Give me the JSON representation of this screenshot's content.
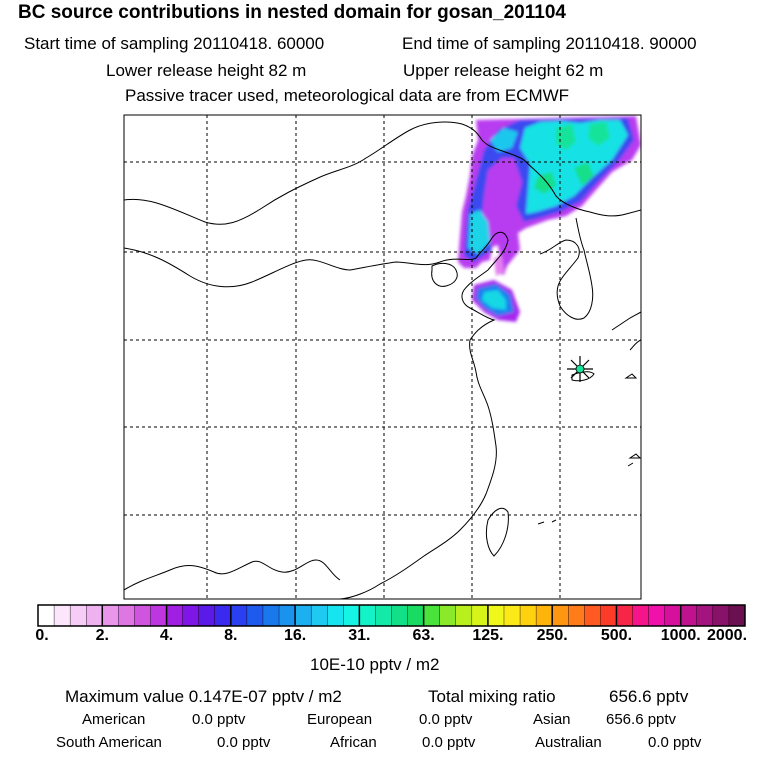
{
  "header": {
    "title": "BC  source contributions in nested domain for gosan_201104",
    "start_label": "Start time of sampling 20110418. 60000",
    "end_label": "End time of sampling 20110418. 90000",
    "lower_label": "Lower release height   82 m",
    "upper_label": "Upper release height   62 m",
    "info": "Passive tracer used, meteorological data are from ECMWF"
  },
  "chart_data": {
    "type": "heatmap",
    "title": "BC  source contributions in nested domain for gosan_201104",
    "colorbar_unit": "10E-10 pptv / m2",
    "colorbar_ticks": [
      "0.",
      "2.",
      "4.",
      "8.",
      "16.",
      "31.",
      "63.",
      "125.",
      "250.",
      "500.",
      "1000.",
      "2000."
    ],
    "colorbar_colors": [
      "#ffffff",
      "#fbe6fb",
      "#f6cdf6",
      "#efb2f0",
      "#e895ea",
      "#de77e2",
      "#cf55df",
      "#bd36e0",
      "#a11ee3",
      "#7f16e8",
      "#5b1ae8",
      "#3a2af0",
      "#2a3ff2",
      "#1f5aee",
      "#1878ec",
      "#1a93ee",
      "#1db0f0",
      "#1fcaf2",
      "#16e5f0",
      "#14f5e6",
      "#14f2c8",
      "#14eaa8",
      "#12e088",
      "#18dc62",
      "#4ae33c",
      "#8ae928",
      "#b8ef1c",
      "#d8f51a",
      "#f0f71a",
      "#fbe91a",
      "#ffd20f",
      "#ffb40a",
      "#ff9612",
      "#ff7c1a",
      "#ff5a22",
      "#fb3c28",
      "#f72648",
      "#f6148a",
      "#f010aa",
      "#d70f9d",
      "#be128e",
      "#a3147e",
      "#881268",
      "#6a0f50"
    ],
    "receptor": "gosan",
    "grid": true
  },
  "stats": {
    "max_label": "Maximum value  0.147E-07 pptv / m2",
    "total_label": "Total mixing ratio",
    "total_value": "656.6 pptv",
    "regions": [
      {
        "name": "American",
        "value": "0.0 pptv"
      },
      {
        "name": "European",
        "value": "0.0 pptv"
      },
      {
        "name": "Asian",
        "value": "656.6 pptv"
      },
      {
        "name": "South American",
        "value": "0.0 pptv"
      },
      {
        "name": "African",
        "value": "0.0 pptv"
      },
      {
        "name": "Australian",
        "value": "0.0 pptv"
      }
    ]
  }
}
